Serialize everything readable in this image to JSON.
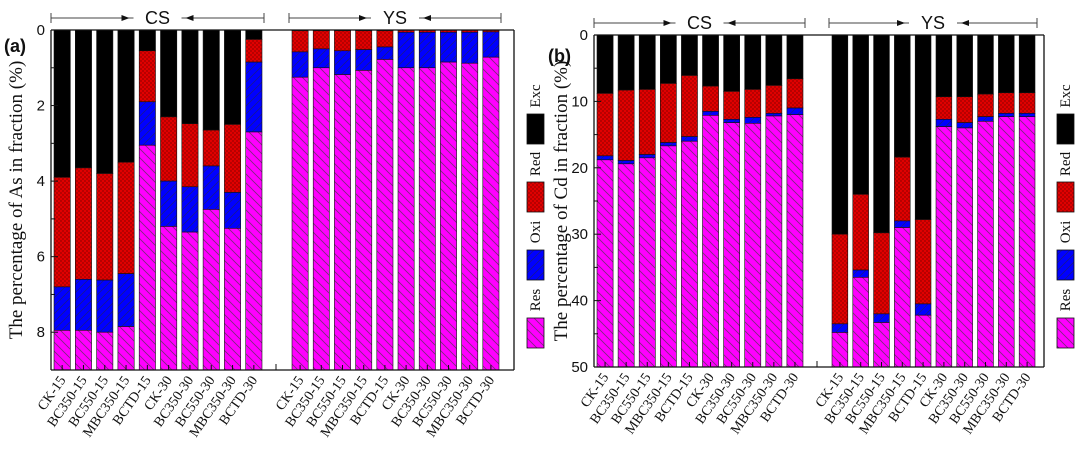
{
  "chart_data": [
    {
      "type": "bar",
      "stacked": true,
      "panel_label": "(a)",
      "title": "",
      "xlabel": "",
      "ylabel": "The percentage of As in fraction  (%)",
      "ylim": [
        0,
        9
      ],
      "y_inverted": true,
      "yticks": [
        0,
        2,
        4,
        6,
        8
      ],
      "grid": false,
      "legend": {
        "placement": "right",
        "entries": [
          "Res",
          "Oxi",
          "Red",
          "Exc"
        ]
      },
      "note": "Bars are stacked from top (0) downward: Exc, Red, Oxi, Res. Values are cumulative boundaries (end of Exc, end of Red, end of Oxi); Res fills to axis bottom.",
      "groups": [
        {
          "name": "CS",
          "categories": [
            "CK-15",
            "BC350-15",
            "BC550-15",
            "MBC350-15",
            "BCTD-15",
            "CK-30",
            "BC350-30",
            "BC550-30",
            "MBC350-30",
            "BCTD-30"
          ],
          "boundaries": [
            [
              3.9,
              6.8,
              7.95
            ],
            [
              3.65,
              6.6,
              7.95
            ],
            [
              3.8,
              6.62,
              8.0
            ],
            [
              3.5,
              6.45,
              7.85
            ],
            [
              0.55,
              1.9,
              3.05
            ],
            [
              2.3,
              4.0,
              5.2
            ],
            [
              2.48,
              4.15,
              5.35
            ],
            [
              2.65,
              3.6,
              4.75
            ],
            [
              2.5,
              4.3,
              5.25
            ],
            [
              0.25,
              0.85,
              2.7
            ]
          ]
        },
        {
          "name": "YS",
          "categories": [
            "CK-15",
            "BC350-15",
            "BC550-15",
            "MBC350-15",
            "BCTD-15",
            "CK-30",
            "BC350-30",
            "BC550-30",
            "MBC350-30",
            "BCTD-30"
          ],
          "boundaries": [
            [
              0.02,
              0.58,
              1.25
            ],
            [
              0.02,
              0.5,
              1.0
            ],
            [
              0.02,
              0.55,
              1.18
            ],
            [
              0.02,
              0.52,
              1.07
            ],
            [
              0.02,
              0.45,
              0.78
            ],
            [
              0.01,
              0.06,
              1.0
            ],
            [
              0.01,
              0.06,
              1.0
            ],
            [
              0.01,
              0.06,
              0.85
            ],
            [
              0.01,
              0.06,
              0.88
            ],
            [
              0.01,
              0.05,
              0.72
            ]
          ]
        }
      ]
    },
    {
      "type": "bar",
      "stacked": true,
      "panel_label": "(b)",
      "title": "",
      "xlabel": "",
      "ylabel": "The percentage of Cd in fraction (%)",
      "ylim": [
        0,
        50
      ],
      "y_inverted": true,
      "yticks": [
        0,
        10,
        20,
        30,
        40,
        50
      ],
      "grid": false,
      "legend": {
        "placement": "right",
        "entries": [
          "Res",
          "Oxi",
          "Red",
          "Exc"
        ]
      },
      "note": "Bars are stacked from top (0) downward: Exc, Red, Oxi, Res. Values are cumulative boundaries (end of Exc, end of Red, end of Oxi); Res fills to axis bottom.",
      "groups": [
        {
          "name": "CS",
          "categories": [
            "CK-15",
            "BC350-15",
            "BC550-15",
            "MBC350-15",
            "BCTD-15",
            "CK-30",
            "BC350-30",
            "BC550-30",
            "MBC350-30",
            "BCTD-30"
          ],
          "boundaries": [
            [
              8.8,
              18.2,
              18.8
            ],
            [
              8.3,
              18.9,
              19.4
            ],
            [
              8.2,
              18.0,
              18.5
            ],
            [
              7.3,
              16.2,
              16.7
            ],
            [
              6.1,
              15.3,
              16.0
            ],
            [
              7.7,
              11.5,
              12.1
            ],
            [
              8.5,
              12.7,
              13.2
            ],
            [
              8.2,
              12.4,
              13.3
            ],
            [
              7.6,
              11.8,
              12.2
            ],
            [
              6.6,
              11.0,
              12.0
            ]
          ]
        },
        {
          "name": "YS",
          "categories": [
            "CK-15",
            "BC350-15",
            "BC550-15",
            "MBC350-15",
            "BCTD-15",
            "CK-30",
            "BC350-30",
            "BC550-30",
            "MBC350-30",
            "BCTD-30"
          ],
          "boundaries": [
            [
              30.0,
              43.5,
              44.8
            ],
            [
              24.0,
              35.4,
              36.5
            ],
            [
              29.8,
              42.0,
              43.3
            ],
            [
              18.4,
              28.0,
              29.0
            ],
            [
              27.8,
              40.5,
              42.2
            ],
            [
              9.3,
              12.7,
              13.8
            ],
            [
              9.3,
              13.2,
              14.0
            ],
            [
              8.9,
              12.3,
              13.0
            ],
            [
              8.7,
              11.8,
              12.3
            ],
            [
              8.7,
              11.8,
              12.3
            ]
          ]
        }
      ]
    }
  ],
  "series_colors": {
    "Exc": "#000000",
    "Red": "#e00000",
    "Oxi": "#0000ff",
    "Res": "#ff00ff"
  }
}
